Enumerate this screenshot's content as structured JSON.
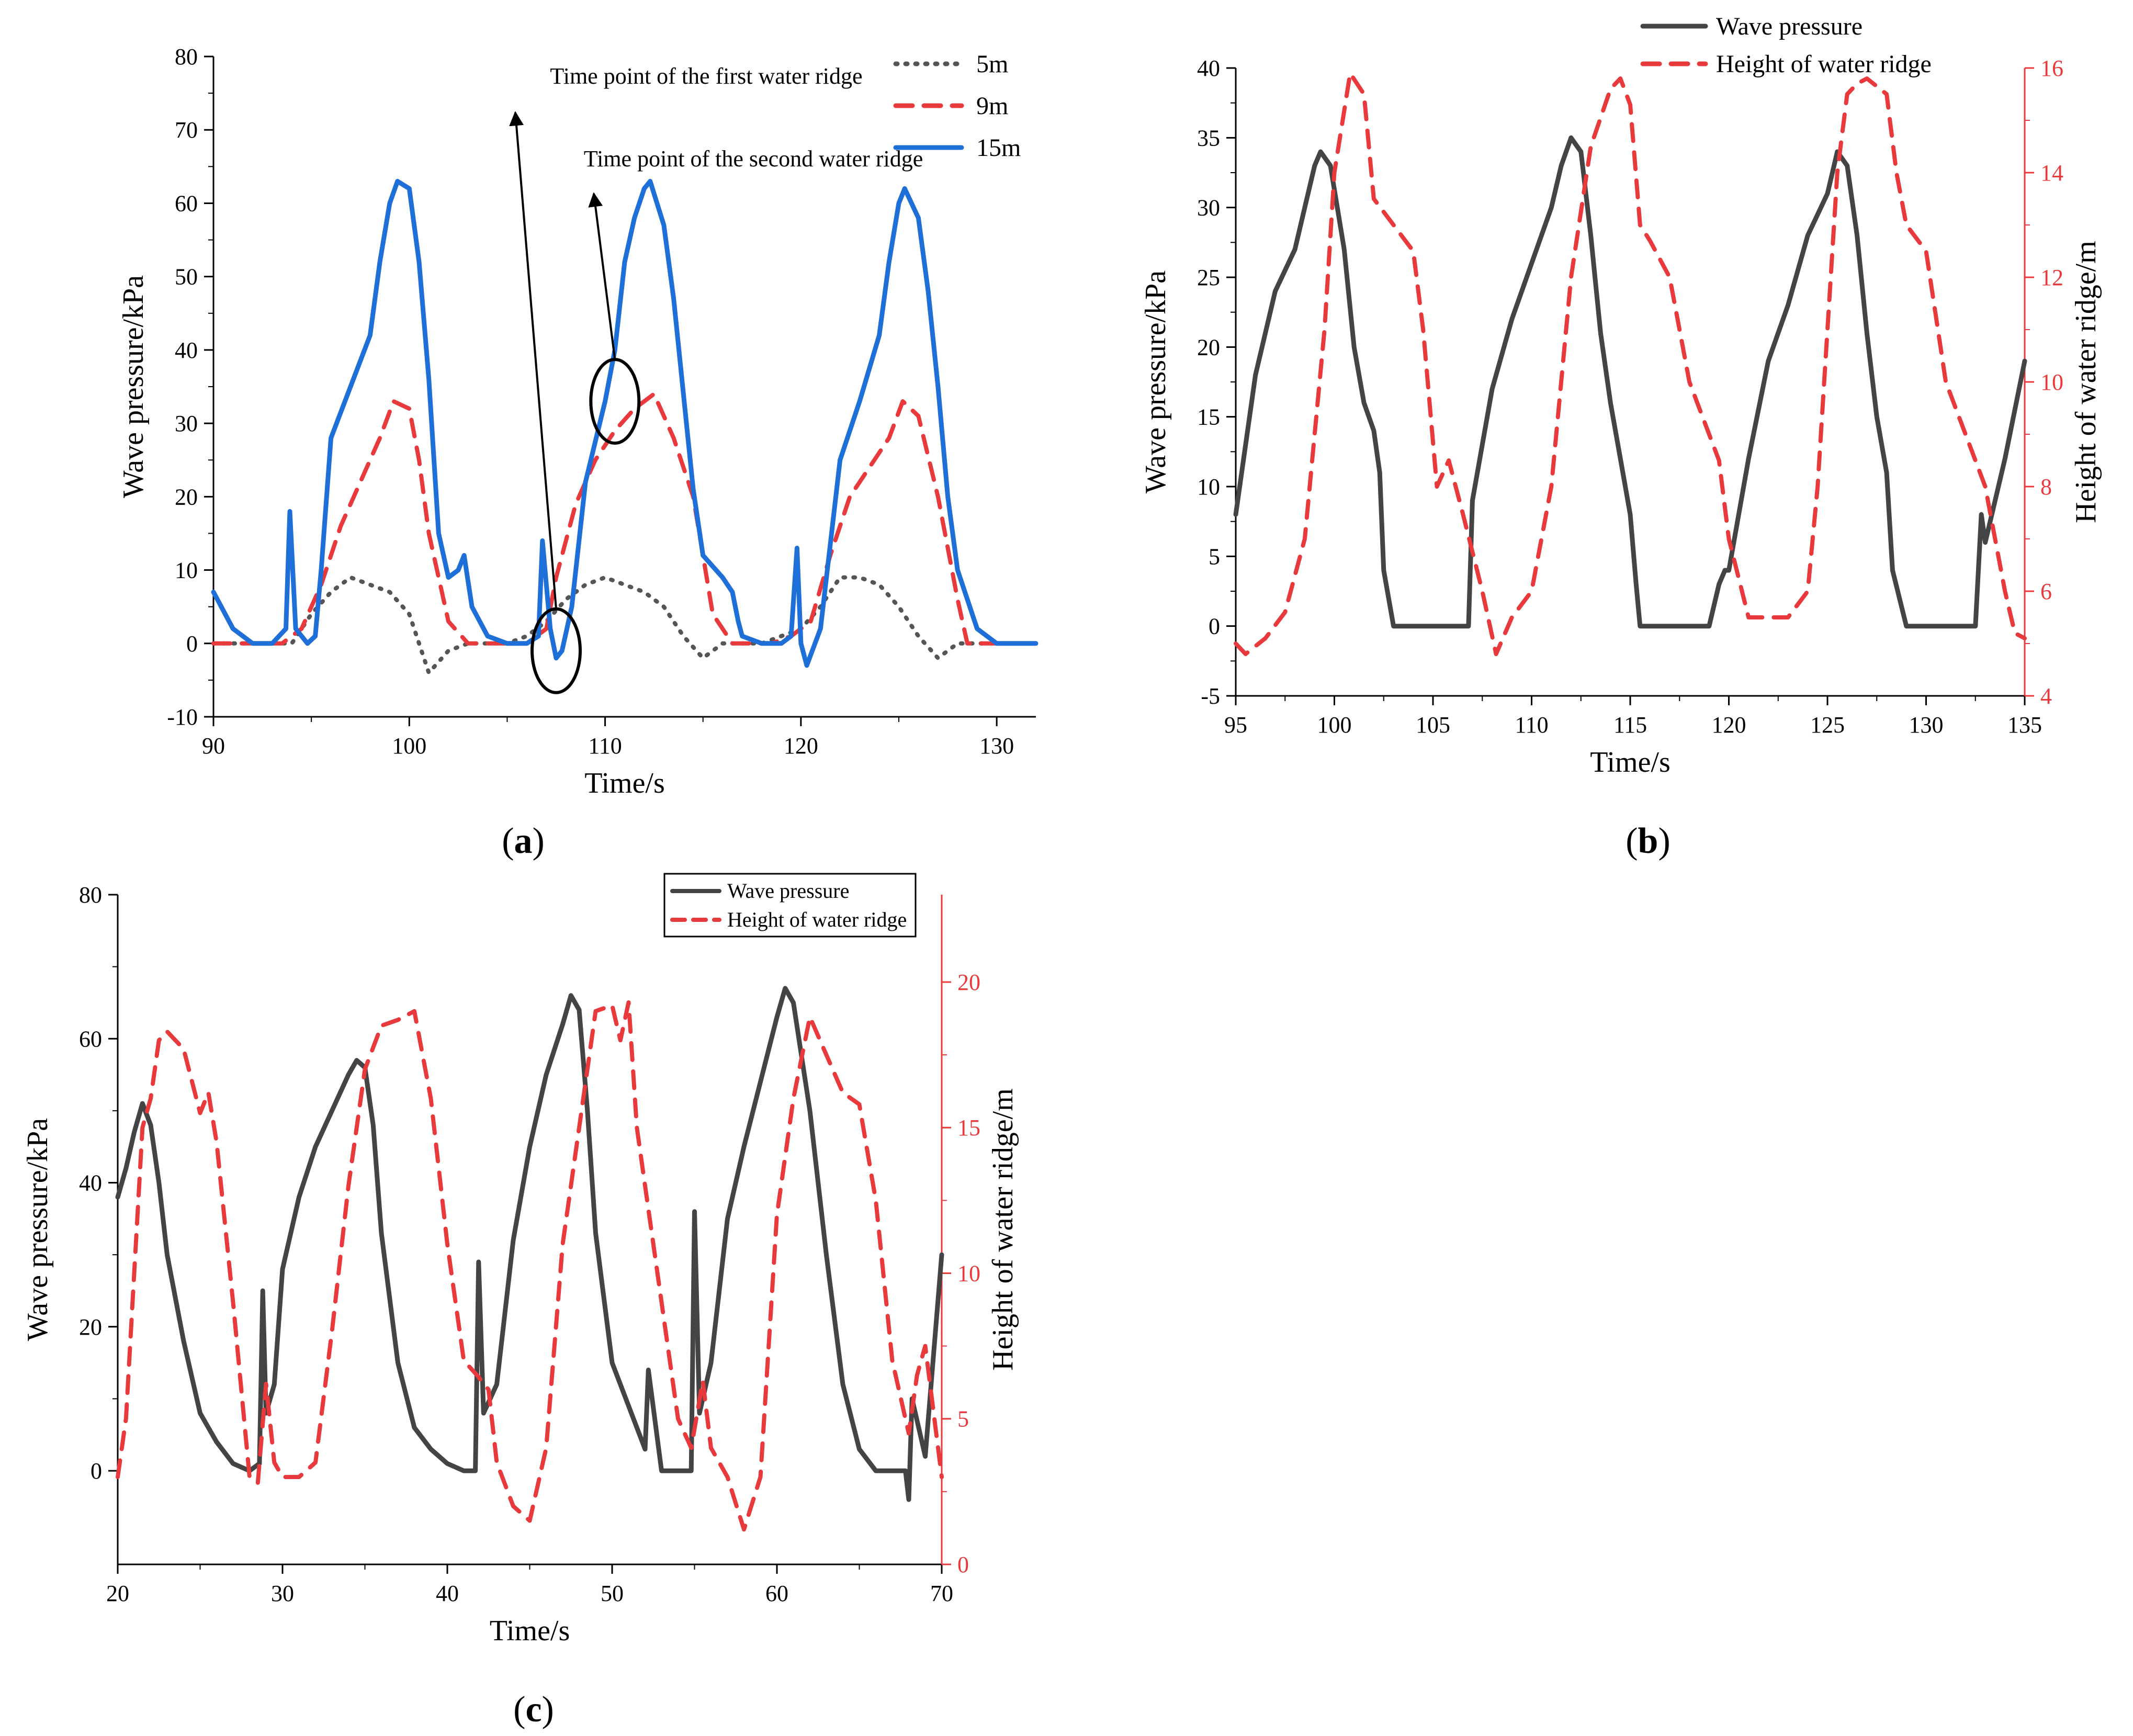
{
  "figure": {
    "panels": [
      {
        "id": "a",
        "label_open": "(",
        "label_letter": "a",
        "label_close": ")"
      },
      {
        "id": "b",
        "label_open": "(",
        "label_letter": "b",
        "label_close": ")"
      },
      {
        "id": "c",
        "label_open": "(",
        "label_letter": "c",
        "label_close": ")"
      }
    ]
  },
  "chart_data": [
    {
      "panel": "a",
      "type": "line",
      "xlabel": "Time/s",
      "ylabel": "Wave pressure/kPa",
      "xlim": [
        90,
        132
      ],
      "ylim": [
        -10,
        80
      ],
      "xticks": [
        90,
        100,
        110,
        120,
        130
      ],
      "yticks": [
        -10,
        0,
        10,
        20,
        30,
        40,
        50,
        60,
        70,
        80
      ],
      "legend_position": "top-right",
      "annotations": [
        {
          "text": "Time point of the first water ridge",
          "points_to": [
            107.5,
            -1
          ]
        },
        {
          "text": "Time point of the second water ridge",
          "points_to": [
            110.5,
            33
          ]
        }
      ],
      "series": [
        {
          "name": "5m",
          "style": "dotted",
          "color": "#555555",
          "x": [
            90,
            92,
            94,
            95,
            96,
            97,
            98,
            99,
            100,
            101,
            102,
            103,
            104,
            105,
            106,
            107,
            108,
            109,
            110,
            111,
            112,
            113,
            114,
            115,
            116,
            117,
            118,
            119,
            120,
            121,
            122,
            123,
            124,
            125,
            126,
            127,
            128,
            130,
            132
          ],
          "y": [
            0,
            0,
            0,
            4,
            7,
            9,
            8,
            7,
            4,
            -4,
            -1,
            0,
            0,
            0,
            1,
            3,
            6,
            8,
            9,
            8,
            7,
            5,
            1,
            -2,
            0,
            0,
            0,
            1,
            2,
            5,
            9,
            9,
            8,
            5,
            1,
            -2,
            0,
            0,
            0
          ]
        },
        {
          "name": "9m",
          "style": "dashed",
          "color": "#e8393d",
          "x": [
            90,
            92,
            93.5,
            94.5,
            95.5,
            96.5,
            97.5,
            98.5,
            99.2,
            100,
            100.5,
            101,
            102,
            103,
            104,
            105,
            106,
            107,
            107.5,
            108.5,
            109.5,
            110.5,
            111.5,
            112.5,
            113.5,
            114.5,
            115.5,
            116.5,
            117.5,
            118.5,
            119.5,
            120.5,
            121.5,
            122.5,
            123.5,
            124.5,
            125.2,
            126,
            127,
            128,
            128.5,
            130,
            132
          ],
          "y": [
            0,
            0,
            0,
            2,
            8,
            16,
            22,
            28,
            33,
            32,
            25,
            15,
            3,
            0,
            0,
            0,
            0,
            2,
            9,
            19,
            25,
            29,
            32,
            34,
            28,
            20,
            4,
            0,
            0,
            0,
            1,
            3,
            12,
            20,
            24,
            28,
            33,
            31,
            20,
            6,
            0,
            0,
            0
          ]
        },
        {
          "name": "15m",
          "style": "solid",
          "color": "#1f6fd8",
          "x": [
            90,
            91,
            92,
            93,
            93.7,
            93.9,
            94.2,
            94.8,
            95.2,
            95.5,
            96,
            97,
            98,
            98.5,
            99,
            99.4,
            100,
            100.5,
            101,
            101.5,
            102,
            102.5,
            102.8,
            103.2,
            104,
            105,
            106,
            106.6,
            106.8,
            107.2,
            107.5,
            107.8,
            108.3,
            109,
            110,
            110.5,
            111,
            111.5,
            112,
            112.3,
            113,
            113.5,
            114,
            114.5,
            115,
            116,
            116.5,
            116.8,
            117,
            118,
            119,
            119.5,
            119.8,
            120,
            120.3,
            121,
            122,
            123,
            124,
            124.5,
            125,
            125.3,
            126,
            126.5,
            127,
            127.5,
            128,
            128.5,
            129,
            130,
            131,
            132
          ],
          "y": [
            7,
            2,
            0,
            0,
            2,
            18,
            2,
            0,
            1,
            10,
            28,
            35,
            42,
            52,
            60,
            63,
            62,
            52,
            36,
            15,
            9,
            10,
            12,
            5,
            1,
            0,
            0,
            1,
            14,
            2,
            -2,
            -1,
            5,
            22,
            33,
            40,
            52,
            58,
            62,
            63,
            57,
            47,
            34,
            21,
            12,
            9,
            7,
            3,
            1,
            0,
            0,
            1,
            13,
            0,
            -3,
            2,
            25,
            33,
            42,
            52,
            60,
            62,
            58,
            48,
            35,
            20,
            10,
            6,
            2,
            0,
            0,
            0
          ]
        }
      ]
    },
    {
      "panel": "b",
      "type": "line",
      "xlabel": "Time/s",
      "ylabel": "Wave pressure/kPa",
      "y2label": "Height of water ridge/m",
      "xlim": [
        95,
        135
      ],
      "ylim": [
        -5,
        40
      ],
      "y2lim": [
        4,
        16
      ],
      "xticks": [
        95,
        100,
        105,
        110,
        115,
        120,
        125,
        130,
        135
      ],
      "yticks": [
        -5,
        0,
        5,
        10,
        15,
        20,
        25,
        30,
        35,
        40
      ],
      "y2ticks": [
        4,
        6,
        8,
        10,
        12,
        14,
        16
      ],
      "legend_position": "top-center",
      "series": [
        {
          "name": "Wave pressure",
          "axis": "left",
          "style": "solid",
          "color": "#444444",
          "x": [
            95,
            96,
            97,
            98,
            98.5,
            99,
            99.3,
            99.8,
            100.5,
            101,
            101.5,
            102,
            102.3,
            102.5,
            103,
            104,
            105,
            106,
            106.8,
            107,
            108,
            109,
            110,
            111,
            111.5,
            112,
            112.5,
            113,
            113.5,
            114,
            114.5,
            115,
            115.3,
            115.5,
            116,
            117,
            118,
            119,
            119.5,
            119.8,
            120,
            121,
            122,
            123,
            124,
            125,
            125.5,
            126,
            126.5,
            127,
            127.5,
            128,
            128.3,
            129,
            130,
            131,
            132,
            132.5,
            132.8,
            133,
            134,
            135
          ],
          "y": [
            8,
            18,
            24,
            27,
            30,
            33,
            34,
            33,
            27,
            20,
            16,
            14,
            11,
            4,
            0,
            0,
            0,
            0,
            0,
            9,
            17,
            22,
            26,
            30,
            33,
            35,
            34,
            28,
            21,
            16,
            12,
            8,
            3,
            0,
            0,
            0,
            0,
            0,
            3,
            4,
            4,
            12,
            19,
            23,
            28,
            31,
            34,
            33,
            28,
            21,
            15,
            11,
            4,
            0,
            0,
            0,
            0,
            0,
            8,
            6,
            12,
            19
          ]
        },
        {
          "name": "Height of water ridge",
          "axis": "right",
          "style": "dashed",
          "color": "#e8393d",
          "x": [
            95,
            95.5,
            96.5,
            97.5,
            98.5,
            99.5,
            100,
            100.8,
            101.5,
            102,
            103,
            104,
            104.5,
            105.2,
            105.8,
            106.5,
            107.5,
            108.2,
            109,
            110,
            111,
            112,
            113,
            114,
            114.5,
            115,
            115.5,
            116,
            117,
            118,
            119,
            119.5,
            120,
            121,
            122,
            123,
            124,
            124.5,
            125,
            125.5,
            126,
            126.5,
            127,
            128,
            128.5,
            129,
            130,
            131,
            132,
            133,
            133.5,
            134,
            134.5,
            135
          ],
          "y": [
            5,
            4.8,
            5.1,
            5.6,
            7,
            11,
            14,
            15.9,
            15.5,
            13.5,
            13,
            12.5,
            11,
            8,
            8.5,
            7.5,
            6,
            4.8,
            5.5,
            6,
            8,
            12,
            14.5,
            15.6,
            15.8,
            15.3,
            13,
            12.7,
            12,
            10,
            9,
            8.5,
            7,
            5.5,
            5.5,
            5.5,
            6,
            8,
            11,
            14,
            15.5,
            15.7,
            15.8,
            15.5,
            14,
            13,
            12.5,
            10,
            9,
            8,
            7,
            6,
            5.2,
            5.1
          ]
        }
      ]
    },
    {
      "panel": "c",
      "type": "line",
      "xlabel": "Time/s",
      "ylabel": "Wave pressure/kPa",
      "y2label": "Height of water ridge/m",
      "xlim": [
        20,
        70
      ],
      "ylim": [
        -13,
        80
      ],
      "y2lim": [
        0,
        23
      ],
      "xticks": [
        20,
        30,
        40,
        50,
        60,
        70
      ],
      "yticks": [
        0,
        20,
        40,
        60,
        80
      ],
      "y2ticks": [
        0,
        5,
        10,
        15,
        20
      ],
      "legend_position": "top-right",
      "series": [
        {
          "name": "Wave pressure",
          "axis": "left",
          "style": "solid",
          "color": "#444444",
          "x": [
            20,
            20.5,
            21,
            21.5,
            22,
            22.5,
            23,
            24,
            25,
            26,
            27,
            28,
            28.6,
            28.8,
            29,
            29.5,
            30,
            31,
            32,
            33,
            34,
            34.5,
            35,
            35.5,
            36,
            37,
            38,
            39,
            40,
            41,
            41.7,
            41.9,
            42.2,
            43,
            44,
            45,
            46,
            47,
            47.5,
            48,
            48.5,
            49,
            50,
            51,
            52,
            52.2,
            53,
            54,
            54.8,
            55,
            55.3,
            56,
            57,
            58,
            59,
            60,
            60.5,
            61,
            62,
            63,
            64,
            65,
            66,
            67,
            67.8,
            68,
            68.2,
            69,
            70
          ],
          "y": [
            38,
            42,
            47,
            51,
            48,
            40,
            30,
            18,
            8,
            4,
            1,
            0,
            1,
            25,
            8,
            12,
            28,
            38,
            45,
            50,
            55,
            57,
            56,
            48,
            33,
            15,
            6,
            3,
            1,
            0,
            0,
            29,
            8,
            12,
            32,
            45,
            55,
            62,
            66,
            64,
            50,
            33,
            15,
            9,
            3,
            14,
            0,
            0,
            0,
            36,
            8,
            15,
            35,
            45,
            54,
            63,
            67,
            65,
            50,
            30,
            12,
            3,
            0,
            0,
            0,
            -4,
            10,
            2,
            30
          ]
        },
        {
          "name": "Height of water ridge",
          "axis": "right",
          "style": "dashed",
          "color": "#e8393d",
          "x": [
            20,
            20.5,
            21,
            21.5,
            22,
            22.5,
            23,
            24,
            25,
            25.5,
            26,
            27,
            28,
            28.5,
            29,
            29.5,
            30,
            31,
            32,
            33,
            34,
            35,
            36,
            37,
            38,
            39,
            40,
            41,
            41.8,
            42.5,
            43,
            44,
            45,
            46,
            47,
            48,
            49,
            50,
            50.5,
            51,
            51.5,
            52,
            53,
            54,
            54.8,
            55.5,
            56,
            57,
            58,
            59,
            60,
            61,
            62,
            63,
            64,
            65,
            66,
            67,
            68,
            68.5,
            69,
            70
          ],
          "y": [
            3,
            5,
            10,
            15,
            16,
            18,
            18.3,
            17.7,
            15.5,
            16.2,
            14.5,
            9,
            3,
            2.8,
            6.2,
            3.5,
            3,
            3,
            3.5,
            8,
            13,
            17,
            18.5,
            18.7,
            19,
            16,
            11,
            7,
            6.5,
            6,
            3.5,
            2,
            1.5,
            4,
            11,
            15,
            19,
            19.2,
            18,
            19.3,
            15,
            13,
            9,
            5,
            4,
            6.3,
            4,
            3,
            1.2,
            3,
            12,
            16,
            18.8,
            17.5,
            16.2,
            15.8,
            12.5,
            7,
            4.5,
            6.5,
            7.5,
            3
          ]
        }
      ]
    }
  ]
}
